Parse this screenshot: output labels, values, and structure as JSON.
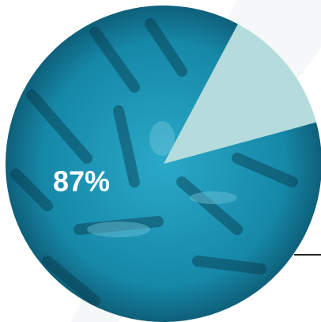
{
  "chart_data": {
    "type": "pie",
    "values": [
      87,
      13
    ],
    "value_labels": [
      "87%",
      null
    ],
    "colors": [
      "#1b8fae",
      "#b5dcdc"
    ]
  }
}
